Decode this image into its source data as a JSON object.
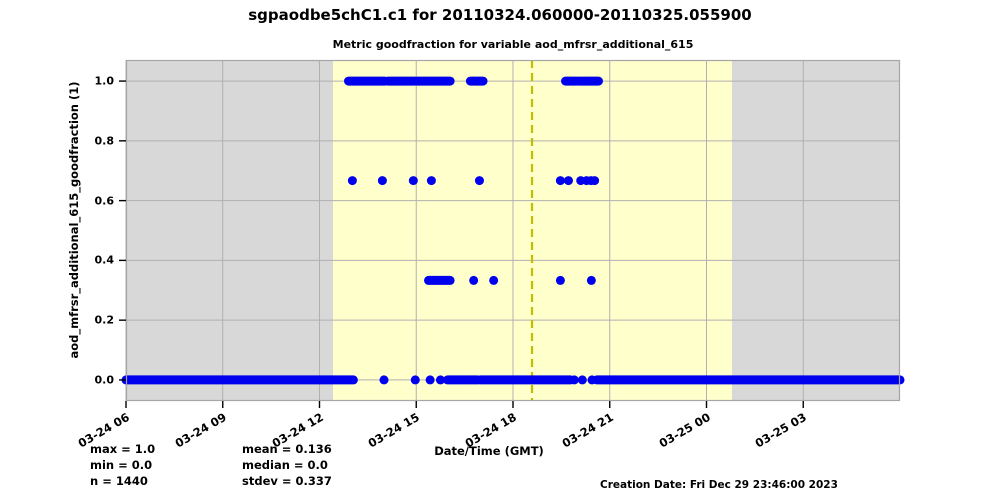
{
  "title": "sgpaodbe5chC1.c1 for 20110324.060000-20110325.055900",
  "stats": {
    "max": "max = 1.0",
    "min": "min = 0.0",
    "n": "n = 1440",
    "mean": "mean = 0.136",
    "median": "median = 0.0",
    "stdev": "stdev = 0.337"
  },
  "footer": {
    "creation_date": "Creation Date: Fri Dec 29 23:46:00 2023"
  },
  "chart_data": {
    "type": "scatter",
    "title": "Metric goodfraction for variable aod_mfrsr_additional_615",
    "xlabel": "Date/Time (GMT)",
    "ylabel": "aod_mfrsr_additional_615_goodfraction (1)",
    "x_range_hours": [
      6,
      30
    ],
    "y_range": [
      -0.0705,
      1.0705
    ],
    "grid": true,
    "colors": {
      "night_band": "#d8d8d8",
      "daylight_band": "#ffffcc",
      "gridline": "#b0b0b0",
      "frame": "#a6a6a6",
      "marker": "#0000ee",
      "vline": "#bfbf00",
      "tick": "#000000"
    },
    "x_ticks": [
      {
        "hour": 6,
        "label": "03-24 06"
      },
      {
        "hour": 9,
        "label": "03-24 09"
      },
      {
        "hour": 12,
        "label": "03-24 12"
      },
      {
        "hour": 15,
        "label": "03-24 15"
      },
      {
        "hour": 18,
        "label": "03-24 18"
      },
      {
        "hour": 21,
        "label": "03-24 21"
      },
      {
        "hour": 24,
        "label": "03-25 00"
      },
      {
        "hour": 27,
        "label": "03-25 03"
      }
    ],
    "y_ticks": [
      {
        "value": 0.0,
        "label": "0.0"
      },
      {
        "value": 0.2,
        "label": "0.2"
      },
      {
        "value": 0.4,
        "label": "0.4"
      },
      {
        "value": 0.6,
        "label": "0.6"
      },
      {
        "value": 0.8,
        "label": "0.8"
      },
      {
        "value": 1.0,
        "label": "1.0"
      }
    ],
    "background_bands": [
      {
        "name": "night-left",
        "from": 6.0,
        "to": 12.42,
        "color_key": "night_band"
      },
      {
        "name": "daylight",
        "from": 12.42,
        "to": 24.79,
        "color_key": "daylight_band"
      },
      {
        "name": "night-right",
        "from": 24.79,
        "to": 30.0,
        "color_key": "night_band"
      }
    ],
    "vline": {
      "name": "solar-noon-line",
      "hour": 18.59,
      "style": "dashed"
    },
    "marker_radius": 4.5,
    "series": [
      {
        "y": 1.0,
        "segments": [
          [
            12.9,
            14.03
          ],
          [
            14.12,
            14.97
          ],
          [
            15.03,
            16.05
          ],
          [
            16.68,
            17.07
          ],
          [
            19.63,
            19.99
          ],
          [
            20.04,
            20.65
          ]
        ],
        "points": []
      },
      {
        "y": 0.667,
        "segments": [],
        "points": [
          13.02,
          13.95,
          14.91,
          15.47,
          16.96,
          19.47,
          19.72,
          20.1,
          20.28,
          20.42,
          20.53
        ]
      },
      {
        "y": 0.333,
        "segments": [
          [
            15.38,
            16.05
          ]
        ],
        "points": [
          16.78,
          17.4,
          19.47,
          20.43
        ]
      },
      {
        "y": 0.0,
        "segments": [
          [
            6.0,
            13.05
          ],
          [
            15.97,
            16.9
          ],
          [
            16.98,
            19.78
          ],
          [
            20.6,
            30.0
          ]
        ],
        "points": [
          14.0,
          14.97,
          15.43,
          15.75,
          19.9,
          20.15,
          20.45
        ]
      }
    ]
  }
}
